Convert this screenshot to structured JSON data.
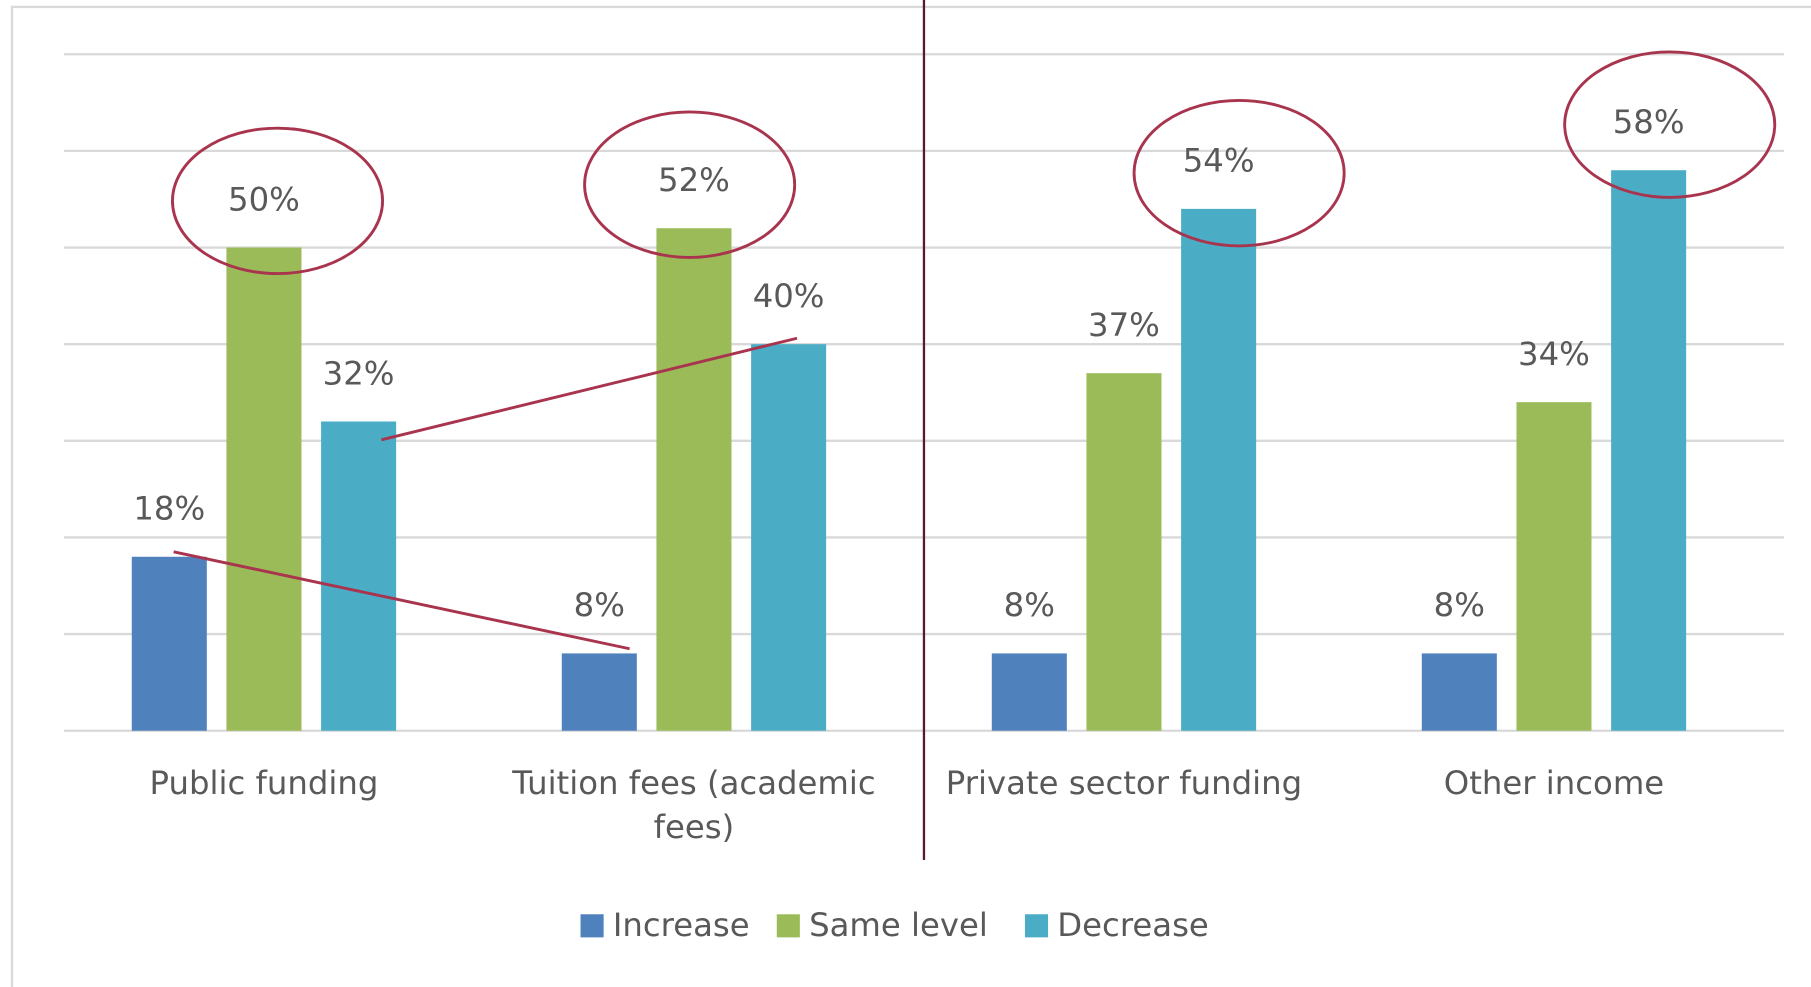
{
  "chart_data": {
    "type": "bar",
    "categories": [
      "Public funding",
      "Tuition fees (academic fees)",
      "Private sector funding",
      "Other income"
    ],
    "series": [
      {
        "name": "Increase",
        "color": "#4f81bd",
        "values": [
          18,
          8,
          8,
          8
        ],
        "value_labels": [
          "18%",
          "8%",
          "8%",
          "8%"
        ]
      },
      {
        "name": "Same level",
        "color": "#9bbb59",
        "values": [
          50,
          52,
          37,
          34
        ],
        "value_labels": [
          "50%",
          "52%",
          "37%",
          "34%"
        ]
      },
      {
        "name": "Decrease",
        "color": "#4bacc6",
        "values": [
          32,
          40,
          54,
          58
        ],
        "value_labels": [
          "32%",
          "40%",
          "54%",
          "58%"
        ]
      }
    ],
    "ylim": [
      0,
      70
    ],
    "yticks": [
      0,
      10,
      20,
      30,
      40,
      50,
      60,
      70
    ],
    "grid": true,
    "legend": "bottom"
  }
}
